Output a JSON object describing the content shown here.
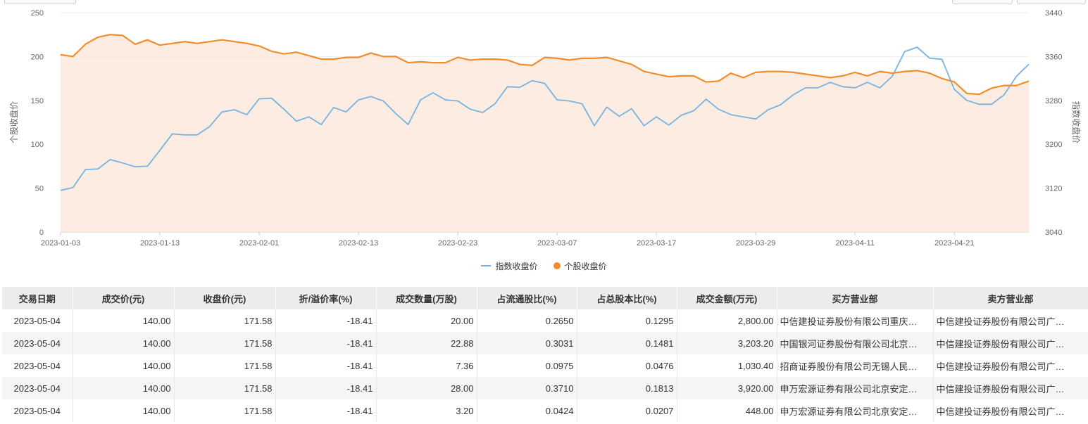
{
  "chart_data": {
    "type": "line",
    "x": [
      "2023-01-03",
      "2023-01-04",
      "2023-01-05",
      "2023-01-06",
      "2023-01-09",
      "2023-01-10",
      "2023-01-11",
      "2023-01-12",
      "2023-01-13",
      "2023-01-16",
      "2023-01-17",
      "2023-01-18",
      "2023-01-19",
      "2023-01-20",
      "2023-01-30",
      "2023-01-31",
      "2023-02-01",
      "2023-02-02",
      "2023-02-03",
      "2023-02-06",
      "2023-02-07",
      "2023-02-08",
      "2023-02-09",
      "2023-02-10",
      "2023-02-13",
      "2023-02-14",
      "2023-02-15",
      "2023-02-16",
      "2023-02-17",
      "2023-02-20",
      "2023-02-21",
      "2023-02-22",
      "2023-02-23",
      "2023-02-24",
      "2023-02-27",
      "2023-02-28",
      "2023-03-01",
      "2023-03-02",
      "2023-03-03",
      "2023-03-06",
      "2023-03-07",
      "2023-03-08",
      "2023-03-09",
      "2023-03-10",
      "2023-03-13",
      "2023-03-14",
      "2023-03-15",
      "2023-03-16",
      "2023-03-17",
      "2023-03-20",
      "2023-03-21",
      "2023-03-22",
      "2023-03-23",
      "2023-03-24",
      "2023-03-27",
      "2023-03-28",
      "2023-03-29",
      "2023-03-30",
      "2023-03-31",
      "2023-04-03",
      "2023-04-04",
      "2023-04-06",
      "2023-04-07",
      "2023-04-10",
      "2023-04-11",
      "2023-04-12",
      "2023-04-13",
      "2023-04-14",
      "2023-04-17",
      "2023-04-18",
      "2023-04-19",
      "2023-04-20",
      "2023-04-21",
      "2023-04-24",
      "2023-04-25",
      "2023-04-26",
      "2023-04-27",
      "2023-04-28",
      "2023-05-04"
    ],
    "x_ticks": [
      "2023-01-03",
      "2023-01-13",
      "2023-02-01",
      "2023-02-13",
      "2023-02-23",
      "2023-03-07",
      "2023-03-17",
      "2023-03-29",
      "2023-04-11",
      "2023-04-21"
    ],
    "series": [
      {
        "name": "指数收盘价",
        "axis": "right",
        "color": "#76b3e0",
        "values": [
          3116,
          3121,
          3154,
          3155,
          3172,
          3166,
          3159,
          3160,
          3189,
          3219,
          3217,
          3217,
          3232,
          3259,
          3263,
          3254,
          3283,
          3284,
          3264,
          3242,
          3250,
          3236,
          3267,
          3259,
          3281,
          3287,
          3279,
          3256,
          3236,
          3281,
          3294,
          3281,
          3279,
          3264,
          3258,
          3274,
          3305,
          3304,
          3316,
          3311,
          3281,
          3279,
          3274,
          3234,
          3268,
          3251,
          3265,
          3234,
          3250,
          3235,
          3253,
          3261,
          3282,
          3264,
          3254,
          3250,
          3246,
          3263,
          3272,
          3290,
          3303,
          3303,
          3313,
          3305,
          3303,
          3313,
          3303,
          3324,
          3369,
          3377,
          3357,
          3355,
          3300,
          3280,
          3273,
          3273,
          3290,
          3324,
          3346
        ]
      },
      {
        "name": "个股收盘价",
        "axis": "left",
        "color": "#f28d2e",
        "values": [
          202,
          200,
          214,
          222,
          225,
          224,
          214,
          219,
          213,
          215,
          217,
          215,
          217,
          219,
          217,
          215,
          212,
          206,
          203,
          205,
          201,
          197,
          197,
          199,
          199,
          204,
          200,
          200,
          193,
          194,
          193,
          193,
          199,
          196,
          197,
          197,
          196,
          191,
          190,
          199,
          198,
          196,
          198,
          198,
          199,
          195,
          191,
          183,
          180,
          177,
          178,
          178,
          171,
          172,
          181,
          176,
          182,
          183,
          183,
          182,
          180,
          178,
          176,
          178,
          182,
          178,
          183,
          181,
          183,
          184,
          181,
          175,
          171,
          158,
          157,
          164,
          167,
          167,
          172
        ]
      }
    ],
    "y_left": {
      "label": "个股收盘价",
      "min": 0,
      "max": 250,
      "ticks": [
        0,
        50,
        100,
        150,
        200,
        250
      ]
    },
    "y_right": {
      "label": "指数收盘价",
      "min": 3040,
      "max": 3440,
      "ticks": [
        3040,
        3120,
        3200,
        3280,
        3360,
        3440
      ]
    },
    "grid": true,
    "legend_placement": "bottom-center"
  },
  "legend": {
    "series1": "指数收盘价",
    "series2": "个股收盘价"
  },
  "table": {
    "headers": [
      "交易日期",
      "成交价(元)",
      "收盘价(元)",
      "折/溢价率(%)",
      "成交数量(万股)",
      "占流通股比(%)",
      "占总股本比(%)",
      "成交金额(万元)",
      "买方营业部",
      "卖方营业部"
    ],
    "rows": [
      [
        "2023-05-04",
        "140.00",
        "171.58",
        "-18.41",
        "20.00",
        "0.2650",
        "0.1295",
        "2,800.00",
        "中信建投证券股份有限公司重庆…",
        "中信建投证券股份有限公司广…"
      ],
      [
        "2023-05-04",
        "140.00",
        "171.58",
        "-18.41",
        "22.88",
        "0.3031",
        "0.1481",
        "3,203.20",
        "中国银河证券股份有限公司北京…",
        "中信建投证券股份有限公司广…"
      ],
      [
        "2023-05-04",
        "140.00",
        "171.58",
        "-18.41",
        "7.36",
        "0.0975",
        "0.0476",
        "1,030.40",
        "招商证券股份有限公司无锡人民…",
        "中信建投证券股份有限公司广…"
      ],
      [
        "2023-05-04",
        "140.00",
        "171.58",
        "-18.41",
        "28.00",
        "0.3710",
        "0.1813",
        "3,920.00",
        "申万宏源证券有限公司北京安定…",
        "中信建投证券股份有限公司广…"
      ],
      [
        "2023-05-04",
        "140.00",
        "171.58",
        "-18.41",
        "3.20",
        "0.0424",
        "0.0207",
        "448.00",
        "申万宏源证券有限公司北京安定…",
        "中信建投证券股份有限公司广…"
      ]
    ]
  }
}
